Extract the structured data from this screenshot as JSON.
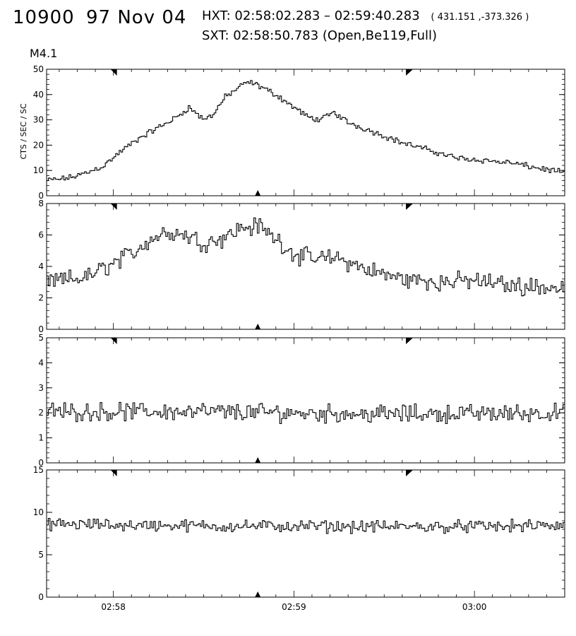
{
  "header": {
    "event_id": "10900",
    "date": "97 Nov 04",
    "hxt_label": "HXT:",
    "hxt_range": "02:58:02.283 – 02:59:40.283",
    "hxt_coords": "( 431.151 ,-373.326 )",
    "sxt_label": "SXT:",
    "sxt_info": "02:58:50.783 (Open,Be119,Full)",
    "flare_class": "M4.1"
  },
  "chart_data": {
    "type": "line",
    "style": "histogram-step",
    "x_axis": {
      "unit": "minutes after 02:57:00 UT",
      "range": [
        0.63,
        3.5
      ],
      "tick_labels": [
        {
          "value": 1.0,
          "label": "02:58"
        },
        {
          "value": 2.0,
          "label": "02:59"
        },
        {
          "value": 3.0,
          "label": "03:00"
        }
      ]
    },
    "ylabel": "CTS / SEC / SC",
    "markers": {
      "hxt_start": 1.0,
      "hxt_end": 2.64,
      "sxt_time": 1.8
    },
    "panels": [
      {
        "name": "",
        "ylim": [
          0,
          50
        ],
        "yticks": [
          0,
          10,
          20,
          30,
          40,
          50
        ],
        "noise": 0.9,
        "profile": [
          [
            0.63,
            6
          ],
          [
            0.75,
            7
          ],
          [
            0.85,
            9
          ],
          [
            0.95,
            12
          ],
          [
            1.05,
            18
          ],
          [
            1.15,
            23
          ],
          [
            1.25,
            27
          ],
          [
            1.35,
            31
          ],
          [
            1.42,
            35
          ],
          [
            1.5,
            30
          ],
          [
            1.55,
            32
          ],
          [
            1.62,
            39
          ],
          [
            1.7,
            43
          ],
          [
            1.75,
            45
          ],
          [
            1.82,
            43
          ],
          [
            1.9,
            40
          ],
          [
            2.0,
            35
          ],
          [
            2.08,
            31
          ],
          [
            2.15,
            30
          ],
          [
            2.22,
            33
          ],
          [
            2.3,
            29
          ],
          [
            2.45,
            25
          ],
          [
            2.6,
            21
          ],
          [
            2.75,
            18
          ],
          [
            2.9,
            15
          ],
          [
            3.05,
            14
          ],
          [
            3.2,
            13
          ],
          [
            3.35,
            11
          ],
          [
            3.5,
            9
          ]
        ]
      },
      {
        "name": "",
        "ylim": [
          0,
          8
        ],
        "yticks": [
          0,
          2,
          4,
          6,
          8
        ],
        "noise": 0.45,
        "profile": [
          [
            0.63,
            3.0
          ],
          [
            0.85,
            3.3
          ],
          [
            1.0,
            4.2
          ],
          [
            1.1,
            4.8
          ],
          [
            1.2,
            5.7
          ],
          [
            1.3,
            6.2
          ],
          [
            1.4,
            6.0
          ],
          [
            1.5,
            5.5
          ],
          [
            1.6,
            5.8
          ],
          [
            1.7,
            6.4
          ],
          [
            1.8,
            6.6
          ],
          [
            1.9,
            5.8
          ],
          [
            2.0,
            4.8
          ],
          [
            2.1,
            4.5
          ],
          [
            2.25,
            4.5
          ],
          [
            2.4,
            3.8
          ],
          [
            2.6,
            3.2
          ],
          [
            2.8,
            3.0
          ],
          [
            3.0,
            3.1
          ],
          [
            3.2,
            2.8
          ],
          [
            3.5,
            2.6
          ]
        ]
      },
      {
        "name": "",
        "ylim": [
          0,
          5
        ],
        "yticks": [
          0,
          1,
          2,
          3,
          4,
          5
        ],
        "noise": 0.28,
        "profile": [
          [
            0.63,
            2.05
          ],
          [
            1.5,
            2.05
          ],
          [
            2.5,
            1.95
          ],
          [
            3.5,
            2.0
          ]
        ]
      },
      {
        "name": "",
        "ylim": [
          0,
          15
        ],
        "yticks": [
          0,
          5,
          10,
          15
        ],
        "noise": 0.55,
        "profile": [
          [
            0.63,
            8.6
          ],
          [
            1.5,
            8.4
          ],
          [
            2.5,
            8.3
          ],
          [
            3.5,
            8.4
          ]
        ]
      }
    ]
  }
}
